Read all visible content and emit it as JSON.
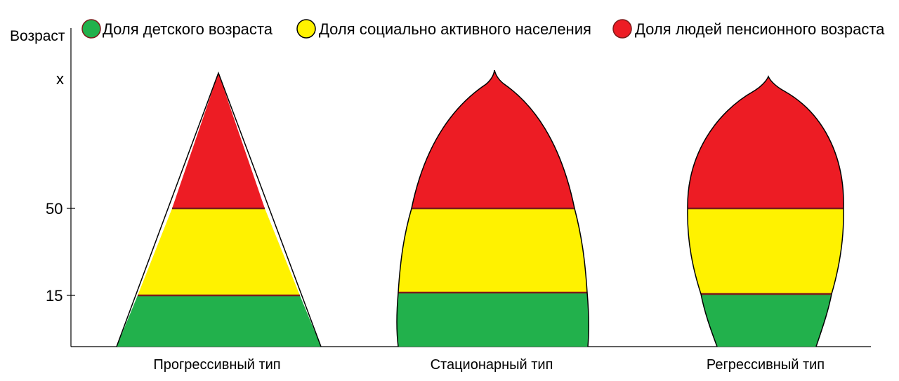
{
  "legend": {
    "items": [
      {
        "label": "Доля детского возраста",
        "color": "#22b14c"
      },
      {
        "label": "Доля социально активного населения",
        "color": "#fff200"
      },
      {
        "label": "Доля людей пенсионного возраста",
        "color": "#ed1c24"
      }
    ]
  },
  "axis": {
    "y_title": "Возраст",
    "ticks": [
      "x",
      "50",
      "15"
    ]
  },
  "pyramids": [
    {
      "label": "Прогрессивный тип",
      "shape": "triangle"
    },
    {
      "label": "Стационарный тип",
      "shape": "bell"
    },
    {
      "label": "Регрессивный тип",
      "shape": "urn"
    }
  ],
  "colors": {
    "children": "#22b14c",
    "working": "#fff200",
    "elderly": "#ed1c24",
    "divider": "#7b1b1b",
    "outline": "#000000"
  }
}
